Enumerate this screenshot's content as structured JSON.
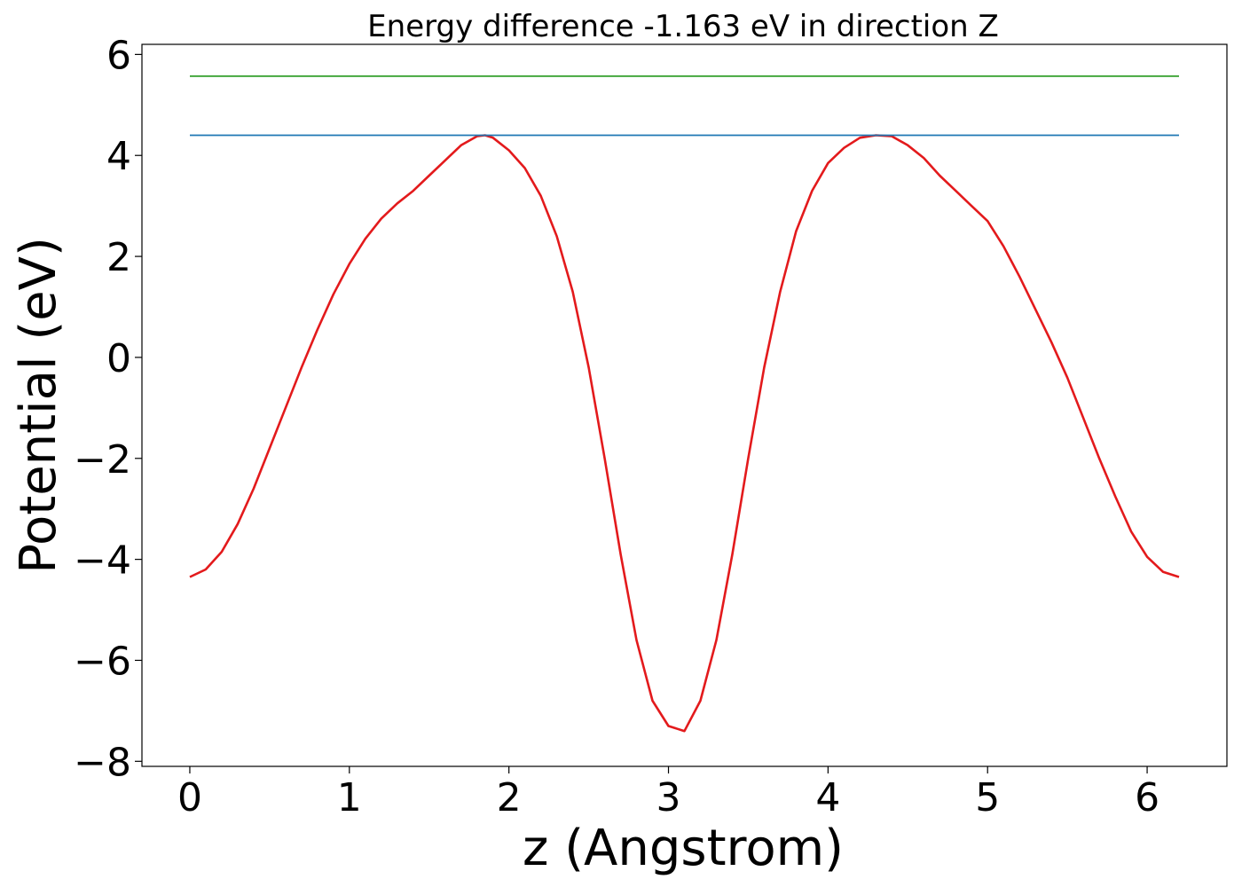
{
  "chart_data": {
    "type": "line",
    "title": "Energy difference -1.163 eV in direction Z",
    "xlabel": "z (Angstrom)",
    "ylabel": "Potential (eV)",
    "xlim": [
      -0.3,
      6.5
    ],
    "ylim": [
      -8.1,
      6.2
    ],
    "xticks": [
      0,
      1,
      2,
      3,
      4,
      5,
      6
    ],
    "yticks": [
      -8,
      -6,
      -4,
      -2,
      0,
      2,
      4,
      6
    ],
    "xtick_labels": [
      "0",
      "1",
      "2",
      "3",
      "4",
      "5",
      "6"
    ],
    "ytick_labels": [
      "−8",
      "−6",
      "−4",
      "−2",
      "0",
      "2",
      "4",
      "6"
    ],
    "grid": false,
    "series": [
      {
        "color": "#e31a1c",
        "x": [
          0,
          0.1,
          0.2,
          0.3,
          0.4,
          0.5,
          0.6,
          0.7,
          0.8,
          0.9,
          1.0,
          1.1,
          1.2,
          1.3,
          1.4,
          1.5,
          1.6,
          1.7,
          1.8,
          1.85,
          1.9,
          2.0,
          2.1,
          2.2,
          2.3,
          2.4,
          2.5,
          2.6,
          2.7,
          2.8,
          2.9,
          3.0,
          3.1,
          3.2,
          3.3,
          3.4,
          3.5,
          3.6,
          3.7,
          3.8,
          3.9,
          4.0,
          4.1,
          4.2,
          4.3,
          4.4,
          4.5,
          4.6,
          4.7,
          4.8,
          4.9,
          5.0,
          5.1,
          5.2,
          5.3,
          5.4,
          5.5,
          5.6,
          5.7,
          5.8,
          5.9,
          6.0,
          6.1,
          6.2
        ],
        "y": [
          -4.35,
          -4.2,
          -3.85,
          -3.3,
          -2.6,
          -1.8,
          -1.0,
          -0.2,
          0.55,
          1.25,
          1.85,
          2.35,
          2.75,
          3.05,
          3.3,
          3.6,
          3.9,
          4.2,
          4.38,
          4.4,
          4.35,
          4.1,
          3.75,
          3.2,
          2.4,
          1.3,
          -0.2,
          -2.0,
          -3.9,
          -5.6,
          -6.8,
          -7.3,
          -7.4,
          -6.8,
          -5.6,
          -3.9,
          -2.0,
          -0.2,
          1.3,
          2.5,
          3.3,
          3.85,
          4.15,
          4.35,
          4.4,
          4.38,
          4.2,
          3.95,
          3.6,
          3.3,
          3.0,
          2.7,
          2.2,
          1.6,
          0.95,
          0.3,
          -0.4,
          -1.2,
          -2.0,
          -2.75,
          -3.45,
          -3.95,
          -4.25,
          -4.35
        ]
      },
      {
        "color": "#1f78b4",
        "x": [
          0,
          6.2
        ],
        "y": [
          4.4,
          4.4
        ]
      },
      {
        "color": "#33a02c",
        "x": [
          0,
          6.2
        ],
        "y": [
          5.57,
          5.57
        ]
      }
    ]
  }
}
